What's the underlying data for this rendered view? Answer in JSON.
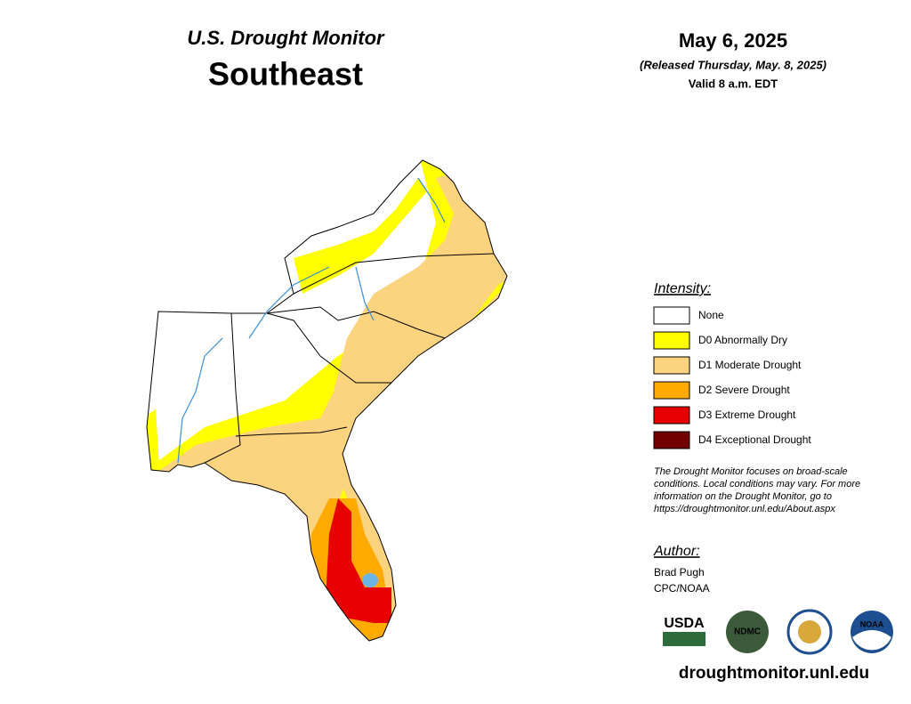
{
  "header": {
    "title": "U.S. Drought Monitor",
    "region": "Southeast",
    "date": "May 6, 2025",
    "released": "(Released Thursday, May. 8, 2025)",
    "valid": "Valid 8 a.m. EDT"
  },
  "legend": {
    "title": "Intensity:",
    "items": [
      {
        "label": "None",
        "color": "#ffffff"
      },
      {
        "label": "D0 Abnormally Dry",
        "color": "#ffff00"
      },
      {
        "label": "D1 Moderate Drought",
        "color": "#fcd37f"
      },
      {
        "label": "D2 Severe Drought",
        "color": "#ffaa00"
      },
      {
        "label": "D3 Extreme Drought",
        "color": "#e60000"
      },
      {
        "label": "D4 Exceptional Drought",
        "color": "#730000"
      }
    ]
  },
  "note": [
    "The Drought Monitor focuses on broad-scale",
    "conditions. Local conditions may vary. For more",
    "information on the Drought Monitor, go to",
    "https://droughtmonitor.unl.edu/About.aspx"
  ],
  "author": {
    "title": "Author:",
    "names": [
      "Brad Pugh",
      "CPC/NOAA"
    ]
  },
  "logos": [
    "USDA",
    "NDMC",
    "NOAA"
  ],
  "url": "droughtmonitor.unl.edu"
}
